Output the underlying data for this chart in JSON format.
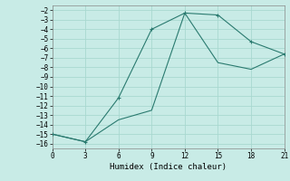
{
  "line1_x": [
    0,
    3,
    6,
    9,
    12,
    15,
    18,
    21
  ],
  "line1_y": [
    -15,
    -15.8,
    -11.2,
    -4,
    -2.3,
    -2.5,
    -5.3,
    -6.6
  ],
  "line2_x": [
    0,
    3,
    6,
    9,
    12,
    15,
    18,
    21
  ],
  "line2_y": [
    -15,
    -15.8,
    -13.5,
    -12.5,
    -2.3,
    -7.5,
    -8.2,
    -6.6
  ],
  "color": "#2a7a6f",
  "bg_color": "#c8ebe6",
  "grid_color": "#a8d8d0",
  "xlabel": "Humidex (Indice chaleur)",
  "xlim": [
    0,
    21
  ],
  "ylim": [
    -16.5,
    -1.5
  ],
  "xticks": [
    0,
    3,
    6,
    9,
    12,
    15,
    18,
    21
  ],
  "yticks": [
    -2,
    -3,
    -4,
    -5,
    -6,
    -7,
    -8,
    -9,
    -10,
    -11,
    -12,
    -13,
    -14,
    -15,
    -16
  ]
}
